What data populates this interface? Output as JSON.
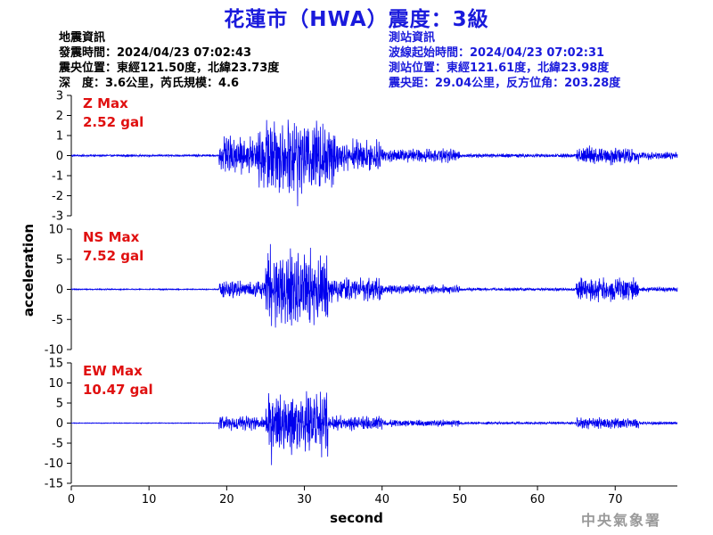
{
  "title": "花蓮市（HWA）震度：3級",
  "quake_info": {
    "heading": "地震資訊",
    "time": "發震時間：2024/04/23 07:02:43",
    "epicenter": "震央位置：東經121.50度，北緯23.73度",
    "depth_mag": "深　度：3.6公里，芮氏規模：4.6"
  },
  "station_info": {
    "heading": "測站資訊",
    "wave_time": "波線起始時間：2024/04/23 07:02:31",
    "location": "測站位置：東經121.61度，北緯23.98度",
    "distance": "震央距：29.04公里，反方位角：203.28度"
  },
  "watermark": "中央氣象署",
  "colors": {
    "title": "#1a1adc",
    "trace": "#0000ee",
    "label": "#e01010",
    "station_info": "#1a1adc"
  },
  "chart_data": [
    {
      "type": "line",
      "component": "Z",
      "label_line1": "Z Max",
      "label_line2": "2.52 gal",
      "ylim": [
        -3,
        3
      ],
      "yticks": [
        3,
        2,
        1,
        0,
        -1,
        -2,
        -3
      ],
      "peak": 2.52,
      "segments": [
        {
          "x": [
            0,
            19
          ],
          "amp": 0.05
        },
        {
          "x": [
            19,
            24
          ],
          "amp": 0.9
        },
        {
          "x": [
            24,
            34
          ],
          "amp": 1.9
        },
        {
          "x": [
            34,
            40
          ],
          "amp": 0.8
        },
        {
          "x": [
            40,
            50
          ],
          "amp": 0.35
        },
        {
          "x": [
            50,
            65
          ],
          "amp": 0.1
        },
        {
          "x": [
            65,
            73
          ],
          "amp": 0.45
        },
        {
          "x": [
            73,
            78
          ],
          "amp": 0.2
        }
      ]
    },
    {
      "type": "line",
      "component": "NS",
      "label_line1": "NS Max",
      "label_line2": "7.52 gal",
      "ylim": [
        -10,
        10
      ],
      "yticks": [
        10,
        5,
        0,
        -5,
        -10
      ],
      "peak": 7.52,
      "segments": [
        {
          "x": [
            0,
            19
          ],
          "amp": 0.1
        },
        {
          "x": [
            19,
            25
          ],
          "amp": 1.5
        },
        {
          "x": [
            25,
            33
          ],
          "amp": 6.5
        },
        {
          "x": [
            33,
            40
          ],
          "amp": 2.0
        },
        {
          "x": [
            40,
            50
          ],
          "amp": 0.8
        },
        {
          "x": [
            50,
            65
          ],
          "amp": 0.25
        },
        {
          "x": [
            65,
            73
          ],
          "amp": 2.0
        },
        {
          "x": [
            73,
            78
          ],
          "amp": 0.4
        }
      ]
    },
    {
      "type": "line",
      "component": "EW",
      "label_line1": "EW Max",
      "label_line2": "10.47 gal",
      "ylim": [
        -15,
        15
      ],
      "yticks": [
        15,
        10,
        5,
        0,
        -5,
        -10,
        -15
      ],
      "peak": 10.47,
      "segments": [
        {
          "x": [
            0,
            19
          ],
          "amp": 0.1
        },
        {
          "x": [
            19,
            25
          ],
          "amp": 1.8
        },
        {
          "x": [
            25,
            33
          ],
          "amp": 8.0
        },
        {
          "x": [
            33,
            40
          ],
          "amp": 1.8
        },
        {
          "x": [
            40,
            50
          ],
          "amp": 0.9
        },
        {
          "x": [
            50,
            65
          ],
          "amp": 0.3
        },
        {
          "x": [
            65,
            73
          ],
          "amp": 1.4
        },
        {
          "x": [
            73,
            78
          ],
          "amp": 0.4
        }
      ]
    }
  ],
  "x_axis": {
    "label": "second",
    "xlim": [
      0,
      78
    ],
    "ticks": [
      0,
      10,
      20,
      30,
      40,
      50,
      60,
      70
    ]
  },
  "y_axis_label": "acceleration"
}
